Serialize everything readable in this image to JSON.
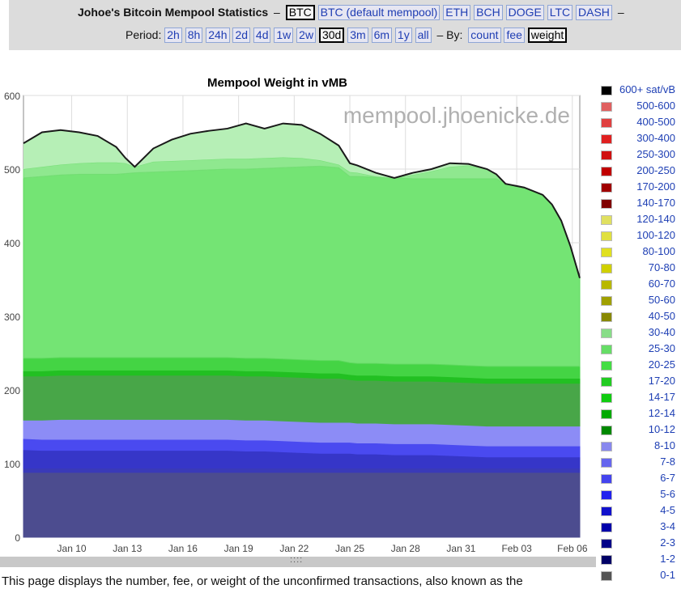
{
  "header": {
    "title": "Johoe's Bitcoin Mempool Statistics",
    "dash": "–",
    "coins": [
      "BTC",
      "BTC (default mempool)",
      "ETH",
      "BCH",
      "DOGE",
      "LTC",
      "DASH"
    ],
    "coin_selected": "BTC",
    "period_label": "Period:",
    "periods": [
      "2h",
      "8h",
      "24h",
      "2d",
      "4d",
      "1w",
      "2w",
      "30d",
      "3m",
      "6m",
      "1y",
      "all"
    ],
    "period_selected": "30d",
    "by_label": "– By:",
    "by_options": [
      "count",
      "fee",
      "weight"
    ],
    "by_selected": "weight"
  },
  "watermark": "mempool.jhoenicke.de",
  "scroll_grip": "::::",
  "footer_text": "This page displays the number, fee, or weight of the unconfirmed transactions, also known as the",
  "chart_data": {
    "type": "area",
    "title": "Mempool Weight in vMB",
    "xlabel": "",
    "ylabel": "",
    "ylim": [
      0,
      600
    ],
    "yticks": [
      0,
      100,
      200,
      300,
      400,
      500,
      600
    ],
    "xlim": [
      0,
      30
    ],
    "xtick_labels": [
      "Jan 10",
      "Jan 13",
      "Jan 16",
      "Jan 19",
      "Jan 22",
      "Jan 25",
      "Jan 28",
      "Jan 31",
      "Feb 03",
      "Feb 06"
    ],
    "xtick_positions": [
      2.6,
      5.6,
      8.6,
      11.6,
      14.6,
      17.6,
      20.6,
      23.6,
      26.6,
      29.6
    ],
    "x": [
      0,
      1,
      2,
      3,
      4,
      5,
      5.5,
      6,
      7,
      8,
      9,
      10,
      11,
      12,
      13,
      14,
      15,
      16,
      17,
      17.6,
      18,
      19,
      20,
      21,
      22,
      23,
      24,
      25,
      25.5,
      26,
      27,
      28,
      28.5,
      29,
      29.5,
      30
    ],
    "total": [
      535,
      550,
      553,
      550,
      545,
      530,
      515,
      503,
      528,
      540,
      548,
      552,
      555,
      562,
      555,
      562,
      560,
      548,
      532,
      508,
      505,
      495,
      488,
      495,
      500,
      508,
      507,
      500,
      493,
      480,
      475,
      465,
      452,
      430,
      395,
      352
    ],
    "legend": [
      "600+ sat/vB",
      "500-600",
      "400-500",
      "300-400",
      "250-300",
      "200-250",
      "170-200",
      "140-170",
      "120-140",
      "100-120",
      "80-100",
      "70-80",
      "60-70",
      "50-60",
      "40-50",
      "30-40",
      "25-30",
      "20-25",
      "17-20",
      "14-17",
      "12-14",
      "10-12",
      "8-10",
      "7-8",
      "6-7",
      "5-6",
      "4-5",
      "3-4",
      "2-3",
      "1-2",
      "0-1"
    ],
    "legend_colors": [
      "#000000",
      "#e06060",
      "#e04040",
      "#e02020",
      "#d01010",
      "#c00000",
      "#a00000",
      "#800000",
      "#e0e060",
      "#e0e040",
      "#e0e020",
      "#d0d000",
      "#b8b800",
      "#a0a000",
      "#888800",
      "#88dd88",
      "#66dd66",
      "#44dd44",
      "#22cc22",
      "#11cc11",
      "#00aa00",
      "#008800",
      "#8888ee",
      "#6666ee",
      "#4444ee",
      "#2222ee",
      "#1111cc",
      "#0000aa",
      "#000088",
      "#000066",
      "#555555"
    ],
    "series": [
      {
        "name": "0-1",
        "color": "#4c4c8f",
        "values": [
          88,
          88,
          88,
          88,
          88,
          88,
          88,
          88,
          88,
          88,
          88,
          88,
          88,
          88,
          88,
          88,
          88,
          88,
          88,
          88,
          88,
          88,
          88,
          88,
          88,
          88,
          88,
          88,
          88,
          88,
          88,
          88,
          88,
          88,
          88,
          88
        ]
      },
      {
        "name": "1-2",
        "color": "#3a3ab8",
        "values": [
          6,
          6,
          6,
          6,
          6,
          6,
          6,
          6,
          6,
          6,
          6,
          6,
          6,
          6,
          6,
          6,
          6,
          6,
          6,
          6,
          6,
          6,
          6,
          6,
          6,
          6,
          6,
          6,
          6,
          6,
          6,
          6,
          6,
          6,
          6,
          6
        ]
      },
      {
        "name": "2-3",
        "color": "#3636c8",
        "values": [
          25,
          24,
          24,
          24,
          24,
          24,
          24,
          24,
          24,
          24,
          24,
          24,
          24,
          23,
          23,
          22,
          21,
          20,
          20,
          20,
          19,
          19,
          18,
          18,
          18,
          17,
          16,
          15,
          15,
          15,
          15,
          15,
          15,
          15,
          15,
          15
        ]
      },
      {
        "name": "3-4",
        "color": "#4a4af0",
        "values": [
          15,
          15,
          15,
          15,
          15,
          15,
          15,
          15,
          15,
          15,
          15,
          15,
          15,
          15,
          15,
          15,
          15,
          15,
          15,
          15,
          15,
          15,
          15,
          15,
          15,
          15,
          15,
          15,
          15,
          15,
          15,
          15,
          15,
          15,
          15,
          15
        ]
      },
      {
        "name": "8-10",
        "color": "#8c8cf6",
        "values": [
          25,
          26,
          27,
          27,
          27,
          27,
          27,
          27,
          27,
          27,
          27,
          27,
          27,
          27,
          27,
          27,
          27,
          27,
          27,
          27,
          27,
          27,
          27,
          27,
          27,
          27,
          27,
          27,
          27,
          27,
          27,
          27,
          27,
          27,
          27,
          27
        ]
      },
      {
        "name": "10-12",
        "color": "#48a648",
        "values": [
          60,
          60,
          60,
          60,
          60,
          60,
          60,
          60,
          60,
          60,
          60,
          60,
          60,
          60,
          60,
          60,
          60,
          60,
          60,
          58,
          58,
          58,
          58,
          58,
          58,
          58,
          58,
          58,
          58,
          58,
          58,
          58,
          58,
          58,
          58,
          58
        ]
      },
      {
        "name": "14-17",
        "color": "#22c022",
        "values": [
          7,
          7,
          7,
          7,
          7,
          7,
          7,
          7,
          7,
          7,
          7,
          7,
          7,
          7,
          7,
          7,
          7,
          7,
          7,
          7,
          7,
          7,
          7,
          7,
          7,
          7,
          7,
          7,
          7,
          7,
          7,
          7,
          7,
          7,
          7,
          7
        ]
      },
      {
        "name": "17-20",
        "color": "#44d444",
        "values": [
          17,
          17,
          17,
          17,
          17,
          17,
          17,
          17,
          17,
          17,
          17,
          17,
          17,
          17,
          17,
          17,
          17,
          17,
          17,
          16,
          16,
          16,
          16,
          16,
          16,
          16,
          16,
          16,
          16,
          16,
          16,
          16,
          16,
          16,
          16,
          16
        ]
      }
    ],
    "upper_bands_note": "20-30 sat/vB fills to total",
    "band_2030_top": [
      488,
      490,
      492,
      493,
      493,
      493,
      494,
      495,
      496,
      497,
      498,
      499,
      500,
      500,
      501,
      502,
      503,
      504,
      502,
      490,
      490,
      489,
      488,
      487,
      487,
      487,
      487,
      487,
      487,
      480,
      475,
      465,
      452,
      430,
      395,
      352
    ],
    "band_3040_top": [
      500,
      503,
      506,
      508,
      509,
      509,
      508,
      508,
      510,
      511,
      512,
      513,
      514,
      514,
      515,
      516,
      515,
      512,
      506,
      496,
      495,
      490,
      488,
      492,
      497,
      503,
      505,
      500,
      493,
      480,
      475,
      465,
      452,
      430,
      395,
      352
    ]
  }
}
